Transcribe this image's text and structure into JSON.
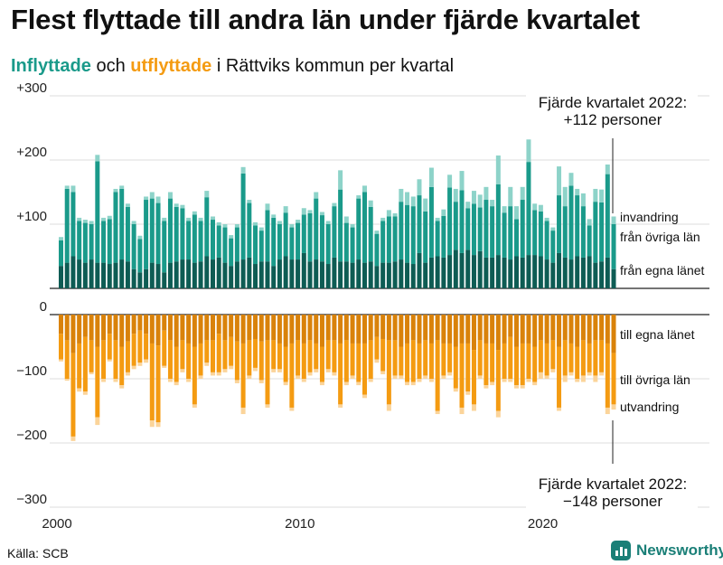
{
  "title": "Flest flyttade till andra län under fjärde kvartalet",
  "subtitle": {
    "in_word": "Inflyttade",
    "and_word": " och ",
    "out_word": "utflyttade",
    "rest": " i Rättviks kommun per kvartal"
  },
  "source": "Källa: SCB",
  "brand": "Newsworthy",
  "colors": {
    "in_local": "#0e5c54",
    "in_other": "#1a9a8a",
    "in_immigration": "#8dd3c9",
    "out_local": "#d9820a",
    "out_other": "#f49b12",
    "out_emigration": "#fbd49a"
  },
  "annotations": {
    "top_line1": "Fjärde kvartalet 2022:",
    "top_line2": "+112 personer",
    "bottom_line1": "Fjärde kvartalet 2022:",
    "bottom_line2": "−148 personer"
  },
  "chart_data": {
    "type": "bar",
    "title": "Flest flyttade till andra län under fjärde kvartalet",
    "xlabel": "",
    "ylabel": "",
    "ylim": [
      -300,
      300
    ],
    "y_ticks": [
      {
        "value": 300,
        "label": "+300"
      },
      {
        "value": 200,
        "label": "+200"
      },
      {
        "value": 100,
        "label": "+100"
      },
      {
        "value": 0,
        "label": "0"
      },
      {
        "value": -100,
        "label": "−100"
      },
      {
        "value": -200,
        "label": "−200"
      },
      {
        "value": -300,
        "label": "−300"
      }
    ],
    "x_ticks": [
      {
        "year": 2000,
        "label": "2000"
      },
      {
        "year": 2010,
        "label": "2010"
      },
      {
        "year": 2020,
        "label": "2020"
      }
    ],
    "periods": [
      "2000 Q1",
      "2000 Q2",
      "2000 Q3",
      "2000 Q4",
      "2001 Q1",
      "2001 Q2",
      "2001 Q3",
      "2001 Q4",
      "2002 Q1",
      "2002 Q2",
      "2002 Q3",
      "2002 Q4",
      "2003 Q1",
      "2003 Q2",
      "2003 Q3",
      "2003 Q4",
      "2004 Q1",
      "2004 Q2",
      "2004 Q3",
      "2004 Q4",
      "2005 Q1",
      "2005 Q2",
      "2005 Q3",
      "2005 Q4",
      "2006 Q1",
      "2006 Q2",
      "2006 Q3",
      "2006 Q4",
      "2007 Q1",
      "2007 Q2",
      "2007 Q3",
      "2007 Q4",
      "2008 Q1",
      "2008 Q2",
      "2008 Q3",
      "2008 Q4",
      "2009 Q1",
      "2009 Q2",
      "2009 Q3",
      "2009 Q4",
      "2010 Q1",
      "2010 Q2",
      "2010 Q3",
      "2010 Q4",
      "2011 Q1",
      "2011 Q2",
      "2011 Q3",
      "2011 Q4",
      "2012 Q1",
      "2012 Q2",
      "2012 Q3",
      "2012 Q4",
      "2013 Q1",
      "2013 Q2",
      "2013 Q3",
      "2013 Q4",
      "2014 Q1",
      "2014 Q2",
      "2014 Q3",
      "2014 Q4",
      "2015 Q1",
      "2015 Q2",
      "2015 Q3",
      "2015 Q4",
      "2016 Q1",
      "2016 Q2",
      "2016 Q3",
      "2016 Q4",
      "2017 Q1",
      "2017 Q2",
      "2017 Q3",
      "2017 Q4",
      "2018 Q1",
      "2018 Q2",
      "2018 Q3",
      "2018 Q4",
      "2019 Q1",
      "2019 Q2",
      "2019 Q3",
      "2019 Q4",
      "2020 Q1",
      "2020 Q2",
      "2020 Q3",
      "2020 Q4",
      "2021 Q1",
      "2021 Q2",
      "2021 Q3",
      "2021 Q4",
      "2022 Q1",
      "2022 Q2",
      "2022 Q3",
      "2022 Q4"
    ],
    "inflow_series": [
      {
        "name": "från egna länet",
        "values": [
          35,
          40,
          50,
          45,
          40,
          45,
          40,
          40,
          38,
          40,
          45,
          42,
          30,
          25,
          30,
          40,
          38,
          25,
          40,
          42,
          45,
          45,
          40,
          42,
          50,
          45,
          48,
          40,
          35,
          42,
          45,
          48,
          38,
          42,
          42,
          35,
          45,
          50,
          45,
          45,
          55,
          42,
          45,
          42,
          38,
          48,
          42,
          42,
          40,
          45,
          40,
          42,
          35,
          40,
          40,
          42,
          45,
          40,
          38,
          55,
          40,
          48,
          50,
          48,
          52,
          60,
          55,
          60,
          52,
          58,
          48,
          48,
          52,
          48,
          45,
          50,
          48,
          52,
          52,
          50,
          45,
          40,
          55,
          48,
          45,
          50,
          48,
          50,
          40,
          42,
          48,
          30
        ]
      },
      {
        "name": "från övriga län",
        "values": [
          40,
          115,
          100,
          60,
          62,
          55,
          158,
          65,
          70,
          110,
          110,
          85,
          70,
          52,
          108,
          100,
          95,
          80,
          100,
          85,
          80,
          60,
          75,
          63,
          92,
          62,
          50,
          55,
          43,
          53,
          134,
          85,
          60,
          48,
          80,
          75,
          55,
          68,
          50,
          57,
          60,
          75,
          95,
          72,
          62,
          80,
          112,
          60,
          55,
          95,
          110,
          85,
          50,
          65,
          72,
          70,
          90,
          90,
          90,
          90,
          80,
          110,
          55,
          65,
          105,
          75,
          98,
          65,
          80,
          68,
          90,
          80,
          110,
          70,
          83,
          58,
          90,
          145,
          70,
          70,
          60,
          50,
          90,
          80,
          115,
          95,
          80,
          48,
          95,
          92,
          130,
          70
        ]
      },
      {
        "name": "invandring",
        "values": [
          5,
          5,
          10,
          5,
          5,
          5,
          10,
          5,
          5,
          5,
          5,
          5,
          5,
          5,
          5,
          10,
          10,
          5,
          10,
          5,
          5,
          5,
          5,
          5,
          10,
          5,
          5,
          5,
          5,
          5,
          10,
          5,
          5,
          5,
          10,
          5,
          5,
          10,
          5,
          5,
          10,
          5,
          10,
          5,
          5,
          5,
          30,
          10,
          5,
          5,
          10,
          10,
          5,
          5,
          10,
          5,
          20,
          20,
          15,
          25,
          20,
          30,
          5,
          10,
          20,
          20,
          30,
          10,
          20,
          20,
          20,
          10,
          45,
          10,
          30,
          20,
          20,
          35,
          10,
          10,
          5,
          5,
          45,
          30,
          20,
          10,
          20,
          10,
          20,
          20,
          15,
          12
        ]
      }
    ],
    "outflow_series": [
      {
        "name": "till egna länet",
        "values": [
          -30,
          -40,
          -60,
          -45,
          -35,
          -40,
          -50,
          -40,
          -30,
          -40,
          -50,
          -42,
          -30,
          -25,
          -30,
          -45,
          -48,
          -25,
          -40,
          -50,
          -40,
          -45,
          -50,
          -45,
          -40,
          -40,
          -30,
          -40,
          -35,
          -42,
          -45,
          -40,
          -38,
          -42,
          -40,
          -40,
          -45,
          -50,
          -45,
          -40,
          -45,
          -40,
          -45,
          -50,
          -40,
          -40,
          -45,
          -40,
          -45,
          -45,
          -45,
          -40,
          -35,
          -38,
          -40,
          -40,
          -50,
          -45,
          -40,
          -45,
          -40,
          -45,
          -40,
          -45,
          -45,
          -50,
          -45,
          -45,
          -55,
          -40,
          -45,
          -45,
          -55,
          -45,
          -35,
          -50,
          -45,
          -45,
          -50,
          -40,
          -45,
          -40,
          -50,
          -40,
          -45,
          -50,
          -40,
          -45,
          -40,
          -40,
          -45,
          -60
        ]
      },
      {
        "name": "till övriga län",
        "values": [
          -40,
          -60,
          -130,
          -70,
          -85,
          -50,
          -110,
          -60,
          -40,
          -60,
          -60,
          -48,
          -50,
          -50,
          -40,
          -120,
          -120,
          -55,
          -60,
          -55,
          -45,
          -55,
          -90,
          -50,
          -35,
          -50,
          -60,
          -45,
          -45,
          -60,
          -100,
          -55,
          -45,
          -60,
          -100,
          -45,
          -40,
          -55,
          -100,
          -55,
          -55,
          -50,
          -40,
          -55,
          -45,
          -50,
          -95,
          -65,
          -50,
          -60,
          -80,
          -60,
          -35,
          -50,
          -100,
          -55,
          -45,
          -60,
          -65,
          -55,
          -55,
          -55,
          -110,
          -50,
          -45,
          -65,
          -100,
          -75,
          -85,
          -55,
          -65,
          -60,
          -95,
          -55,
          -65,
          -60,
          -65,
          -55,
          -55,
          -50,
          -50,
          -45,
          -95,
          -55,
          -45,
          -50,
          -55,
          -45,
          -55,
          -50,
          -100,
          -80
        ]
      },
      {
        "name": "utvandring",
        "values": [
          -3,
          -3,
          -7,
          -5,
          -5,
          -3,
          -12,
          -5,
          -3,
          -5,
          -5,
          -5,
          -5,
          -5,
          -5,
          -10,
          -7,
          -3,
          -5,
          -5,
          -5,
          -5,
          -5,
          -5,
          -5,
          -5,
          -5,
          -5,
          -5,
          -5,
          -10,
          -5,
          -5,
          -5,
          -5,
          -5,
          -5,
          -5,
          -5,
          -5,
          -5,
          -5,
          -5,
          -5,
          -5,
          -5,
          -5,
          -5,
          -5,
          -5,
          -5,
          -5,
          -5,
          -5,
          -10,
          -5,
          -5,
          -5,
          -5,
          -5,
          -5,
          -5,
          -5,
          -5,
          -5,
          -5,
          -10,
          -5,
          -10,
          -5,
          -5,
          -5,
          -10,
          -5,
          -5,
          -5,
          -5,
          -5,
          -5,
          -10,
          -5,
          -5,
          -5,
          -10,
          -5,
          -5,
          -10,
          -5,
          -10,
          -5,
          -10,
          -8
        ]
      }
    ],
    "legend_inflow": [
      "invandring",
      "från övriga län",
      "från egna länet"
    ],
    "legend_outflow": [
      "till egna länet",
      "till övriga län",
      "utvandring"
    ]
  }
}
